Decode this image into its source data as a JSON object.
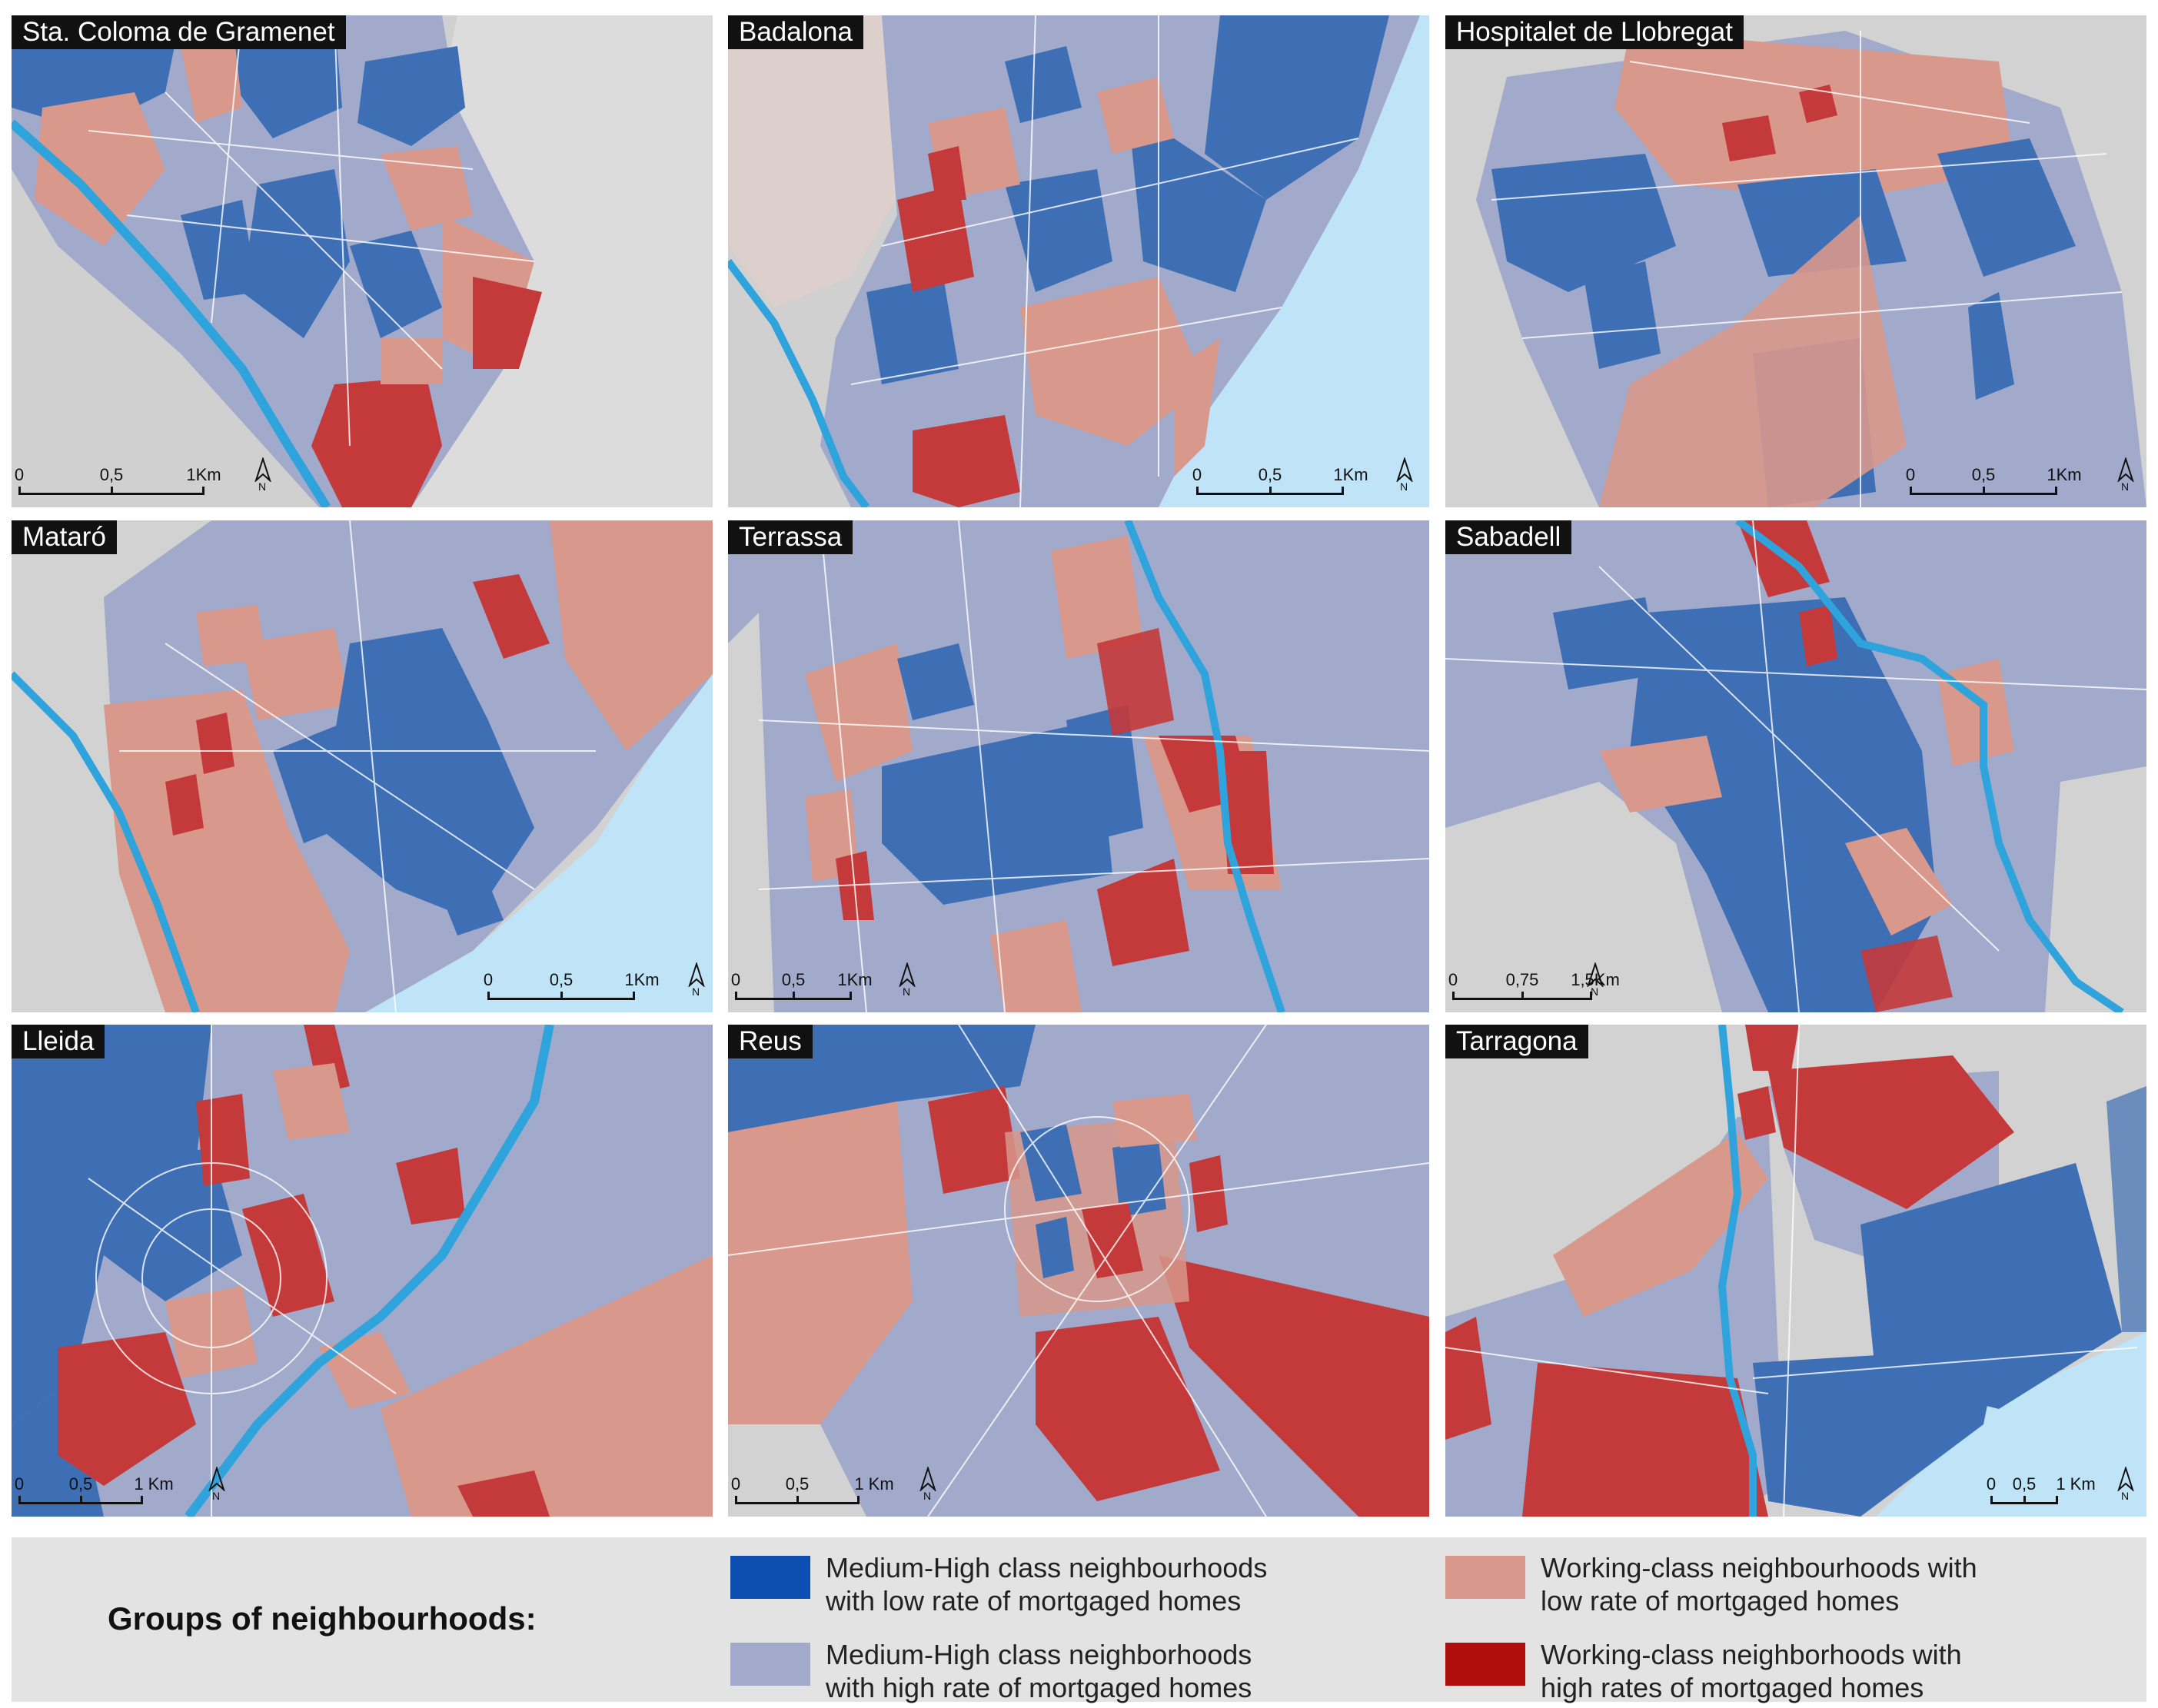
{
  "colors": {
    "medium_high_low": "#3e6fb5",
    "medium_high_high": "#a2aacb",
    "working_low": "#d8988b",
    "working_high": "#c4393a",
    "background_land": "#d6d6d6",
    "water": "#bfe4f7",
    "river": "#2ea3dc"
  },
  "panels": [
    {
      "name": "Sta. Coloma de Gramenet",
      "scale": {
        "ticks": [
          "0",
          "0,5",
          "1Km"
        ]
      },
      "north_label": "N"
    },
    {
      "name": "Badalona",
      "scale": {
        "ticks": [
          "0",
          "0,5",
          "1Km"
        ]
      },
      "north_label": "N"
    },
    {
      "name": "Hospitalet de Llobregat",
      "scale": {
        "ticks": [
          "0",
          "0,5",
          "1Km"
        ]
      },
      "north_label": "N"
    },
    {
      "name": "Mataró",
      "scale": {
        "ticks": [
          "0",
          "0,5",
          "1Km"
        ]
      },
      "north_label": "N"
    },
    {
      "name": "Terrassa",
      "scale": {
        "ticks": [
          "0",
          "0,5",
          "1Km"
        ]
      },
      "north_label": "N"
    },
    {
      "name": "Sabadell",
      "scale": {
        "ticks": [
          "0",
          "0,75",
          "1,5Km"
        ]
      },
      "north_label": "N"
    },
    {
      "name": "Lleida",
      "scale": {
        "ticks": [
          "0",
          "0,5",
          "1 Km"
        ]
      },
      "north_label": "N"
    },
    {
      "name": "Reus",
      "scale": {
        "ticks": [
          "0",
          "0,5",
          "1 Km"
        ]
      },
      "north_label": "N"
    },
    {
      "name": "Tarragona",
      "scale": {
        "ticks": [
          "0",
          "0,5",
          "1 Km"
        ]
      },
      "north_label": "N"
    }
  ],
  "legend": {
    "title": "Groups of neighbourhoods:",
    "items": [
      {
        "line1": "Medium-High class neighbourhoods",
        "line2": "with low rate of mortgaged homes"
      },
      {
        "line1": "Medium-High class neighborhoods",
        "line2": "with high rate of mortgaged homes"
      },
      {
        "line1": "Working-class neighbourhoods with",
        "line2": "low rate of mortgaged homes"
      },
      {
        "line1": "Working-class neighborhoods with",
        "line2": "high rates of mortgaged homes"
      }
    ]
  }
}
